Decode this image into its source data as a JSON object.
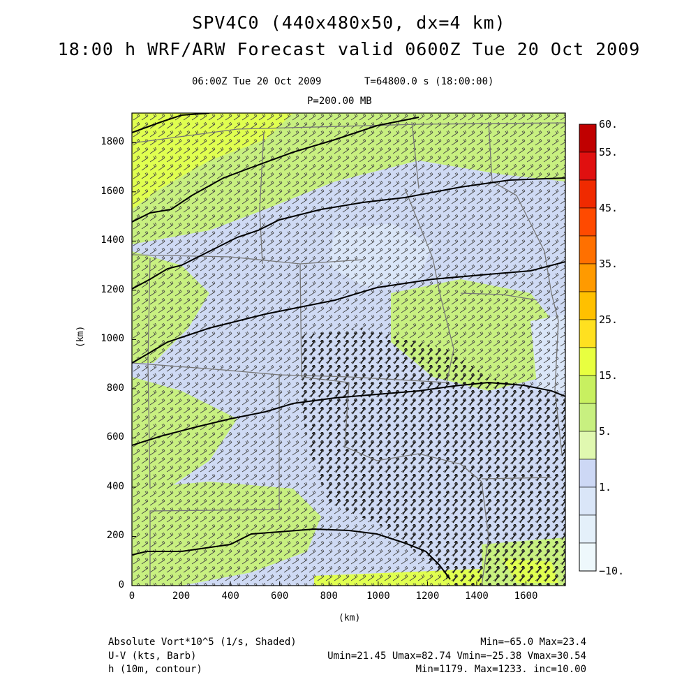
{
  "title_line1": "SPV4C0 (440x480x50, dx=4 km)",
  "title_line2": "18:00 h WRF/ARW Forecast valid 0600Z Tue 20 Oct 2009",
  "valid_time": "06:00Z Tue 20 Oct 2009",
  "sim_time": "T=64800.0 s (18:00:00)",
  "level": "P=200.00 MB",
  "xaxis": {
    "label": "(km)",
    "ticks": [
      "0",
      "200",
      "400",
      "600",
      "800",
      "1000",
      "1200",
      "1400",
      "1600"
    ]
  },
  "yaxis": {
    "label": "(km)",
    "ticks": [
      "0",
      "200",
      "400",
      "600",
      "800",
      "1000",
      "1200",
      "1400",
      "1600",
      "1800"
    ]
  },
  "colorbar": {
    "labels": [
      "60.",
      "55.",
      "45.",
      "35.",
      "25.",
      "15.",
      "5.",
      "1.",
      "−10."
    ],
    "colors": [
      "#c00000",
      "#e01010",
      "#f02a00",
      "#ff4a00",
      "#ff7000",
      "#ff9a00",
      "#ffc000",
      "#ffe020",
      "#e8ff40",
      "#c8f060",
      "#c8f080",
      "#e0f8b0",
      "#cdd8f5",
      "#dae6f8",
      "#e4f0fa",
      "#eef8fc"
    ]
  },
  "legend": {
    "var1": "Absolute Vort*10^5 (1/s, Shaded)",
    "var1_stats": "Min=−65.0 Max=23.4",
    "var2": "U-V (kts, Barb)",
    "var2_stats": "Umin=21.45 Umax=82.74 Vmin=−25.38 Vmax=30.54",
    "var3": "h (10m, contour)",
    "var3_stats": "Min=1179. Max=1233. inc=10.00"
  }
}
